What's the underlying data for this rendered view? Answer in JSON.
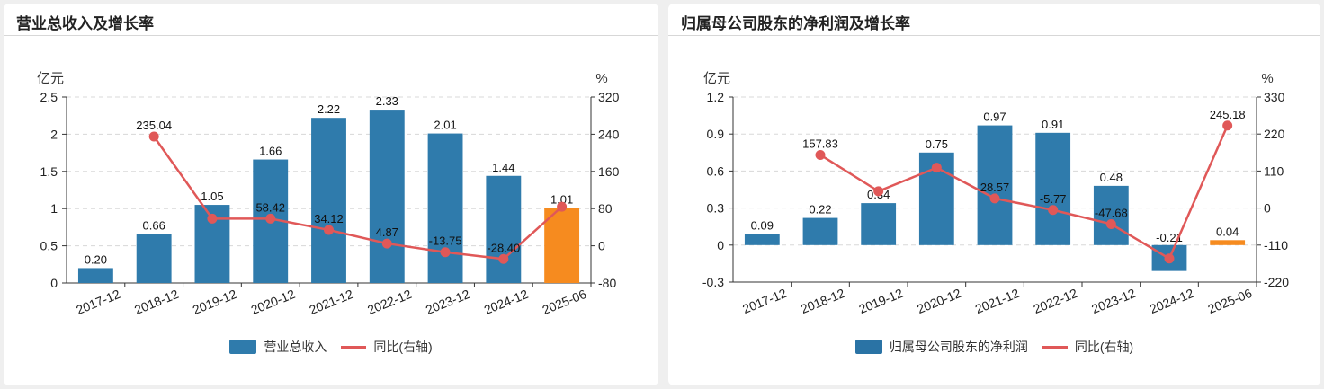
{
  "chart_data": [
    {
      "type": "bar",
      "title": "营业总收入及增长率",
      "categories": [
        "2017-12",
        "2018-12",
        "2019-12",
        "2020-12",
        "2021-12",
        "2022-12",
        "2023-12",
        "2024-12",
        "2025-06"
      ],
      "series": [
        {
          "name": "营业总收入",
          "kind": "bar",
          "axis": "left",
          "values": [
            0.2,
            0.66,
            1.05,
            1.66,
            2.22,
            2.33,
            2.01,
            1.44,
            1.01
          ],
          "labels": [
            "0.20",
            "0.66",
            "1.05",
            "1.66",
            "2.22",
            "2.33",
            "2.01",
            "1.44",
            "1.01"
          ]
        },
        {
          "name": "同比(右轴)",
          "kind": "line",
          "axis": "right",
          "values": [
            null,
            235.04,
            58.42,
            58.42,
            34.12,
            4.87,
            -13.75,
            -28.4,
            84
          ],
          "labels": [
            "",
            "235.04",
            "",
            "58.42",
            "34.12",
            "4.87",
            "-13.75",
            "-28.40",
            ""
          ]
        }
      ],
      "left_unit": "亿元",
      "right_unit": "%",
      "left_ticks": [
        "2.5",
        "2",
        "1.5",
        "1",
        "0.5",
        "0"
      ],
      "right_ticks": [
        "320",
        "240",
        "160",
        "80",
        "0",
        "-80"
      ],
      "ylim": [
        0,
        2.5
      ],
      "y2lim": [
        -80,
        320
      ],
      "highlight_last": true,
      "legend": {
        "bar": "营业总收入",
        "line": "同比(右轴)"
      }
    },
    {
      "type": "bar",
      "title": "归属母公司股东的净利润及增长率",
      "categories": [
        "2017-12",
        "2018-12",
        "2019-12",
        "2020-12",
        "2021-12",
        "2022-12",
        "2023-12",
        "2024-12",
        "2025-06"
      ],
      "series": [
        {
          "name": "归属母公司股东的净利润",
          "kind": "bar",
          "axis": "left",
          "values": [
            0.09,
            0.22,
            0.34,
            0.75,
            0.97,
            0.91,
            0.48,
            -0.21,
            0.04
          ],
          "labels": [
            "0.09",
            "0.22",
            "0.34",
            "0.75",
            "0.97",
            "0.91",
            "0.48",
            "-0.21",
            "0.04"
          ]
        },
        {
          "name": "同比(右轴)",
          "kind": "line",
          "axis": "right",
          "values": [
            null,
            157.83,
            50,
            120,
            28.57,
            -5.77,
            -47.68,
            -150,
            245.18
          ],
          "labels": [
            "",
            "157.83",
            "",
            "",
            "28.57",
            "-5.77",
            "-47.68",
            "",
            "245.18"
          ]
        }
      ],
      "left_unit": "亿元",
      "right_unit": "%",
      "left_ticks": [
        "1.2",
        "0.9",
        "0.6",
        "0.3",
        "0",
        "-0.3"
      ],
      "right_ticks": [
        "330",
        "220",
        "110",
        "0",
        "-110",
        "-220"
      ],
      "ylim": [
        -0.3,
        1.2
      ],
      "y2lim": [
        -220,
        330
      ],
      "highlight_last": true,
      "legend": {
        "bar": "归属母公司股东的净利润",
        "line": "同比(右轴)"
      }
    }
  ],
  "colors": {
    "bar": "#2f7bac",
    "bar_highlight": "#f68b1f",
    "line": "#e05858",
    "grid": "#d8d8d8"
  }
}
